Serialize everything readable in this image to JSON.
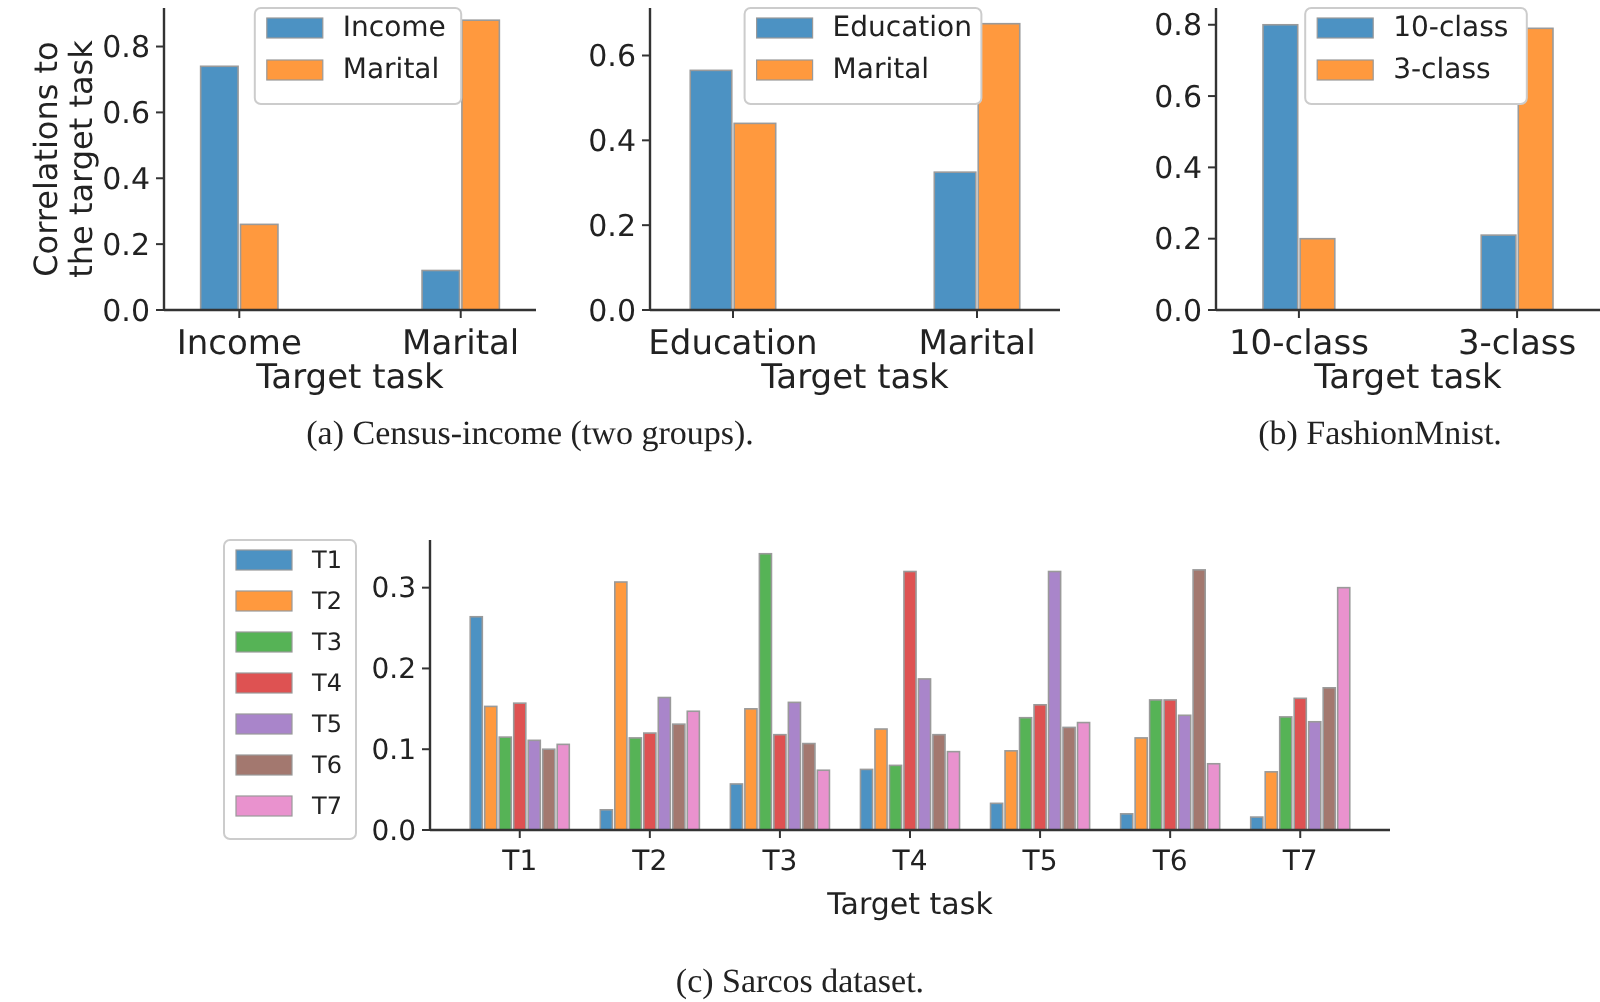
{
  "chart_data": [
    {
      "type": "bar",
      "categories": [
        "Income",
        "Marital"
      ],
      "xlabel": "Target task",
      "ylabel": "Correlations to the target task",
      "ylim": [
        0,
        0.917
      ],
      "yticks": [
        {
          "value": 0,
          "label": "0.0"
        },
        {
          "value": 0.2,
          "label": "0.2"
        },
        {
          "value": 0.4,
          "label": "0.4"
        },
        {
          "value": 0.6,
          "label": "0.6"
        },
        {
          "value": 0.8,
          "label": "0.8"
        }
      ],
      "legend": "top",
      "grid": false,
      "annotations": [
        "(a) Census-income (two groups)."
      ],
      "series": [
        {
          "name": "Income",
          "color": "#4c92c3",
          "values": [
            0.74,
            0.12
          ]
        },
        {
          "name": "Marital",
          "color": "#ff993e",
          "values": [
            0.26,
            0.88
          ]
        }
      ]
    },
    {
      "type": "bar",
      "categories": [
        "Education",
        "Marital"
      ],
      "xlabel": "Target task",
      "ylim": [
        0,
        0.712
      ],
      "yticks": [
        {
          "value": 0,
          "label": "0.0"
        },
        {
          "value": 0.2,
          "label": "0.2"
        },
        {
          "value": 0.4,
          "label": "0.4"
        },
        {
          "value": 0.6,
          "label": "0.6"
        }
      ],
      "legend": "top",
      "grid": false,
      "series": [
        {
          "name": "Education",
          "color": "#4c92c3",
          "values": [
            0.565,
            0.325
          ]
        },
        {
          "name": "Marital",
          "color": "#ff993e",
          "values": [
            0.44,
            0.675
          ]
        }
      ]
    },
    {
      "type": "bar",
      "categories": [
        "10-class",
        "3-class"
      ],
      "xlabel": "Target task",
      "ylim": [
        0,
        0.847
      ],
      "yticks": [
        {
          "value": 0,
          "label": "0.0"
        },
        {
          "value": 0.2,
          "label": "0.2"
        },
        {
          "value": 0.4,
          "label": "0.4"
        },
        {
          "value": 0.6,
          "label": "0.6"
        },
        {
          "value": 0.8,
          "label": "0.8"
        }
      ],
      "legend": "top",
      "grid": false,
      "annotations": [
        "(b) FashionMnist."
      ],
      "series": [
        {
          "name": "10-class",
          "color": "#4c92c3",
          "values": [
            0.8,
            0.21
          ]
        },
        {
          "name": "3-class",
          "color": "#ff993e",
          "values": [
            0.2,
            0.79
          ]
        }
      ]
    },
    {
      "type": "bar",
      "categories": [
        "T1",
        "T2",
        "T3",
        "T4",
        "T5",
        "T6",
        "T7"
      ],
      "xlabel": "Target task",
      "ylim": [
        0,
        0.359
      ],
      "yticks": [
        {
          "value": 0,
          "label": "0.0"
        },
        {
          "value": 0.1,
          "label": "0.1"
        },
        {
          "value": 0.2,
          "label": "0.2"
        },
        {
          "value": 0.3,
          "label": "0.3"
        }
      ],
      "legend": "left",
      "grid": false,
      "annotations": [
        "(c) Sarcos dataset."
      ],
      "series": [
        {
          "name": "T1",
          "color": "#4c92c3",
          "values": [
            0.264,
            0.025,
            0.057,
            0.075,
            0.033,
            0.02,
            0.016
          ]
        },
        {
          "name": "T2",
          "color": "#ff993e",
          "values": [
            0.153,
            0.307,
            0.15,
            0.125,
            0.098,
            0.114,
            0.072
          ]
        },
        {
          "name": "T3",
          "color": "#56b356",
          "values": [
            0.115,
            0.114,
            0.342,
            0.08,
            0.139,
            0.161,
            0.14
          ]
        },
        {
          "name": "T4",
          "color": "#de5252",
          "values": [
            0.157,
            0.12,
            0.118,
            0.32,
            0.155,
            0.161,
            0.163
          ]
        },
        {
          "name": "T5",
          "color": "#a985ca",
          "values": [
            0.111,
            0.164,
            0.158,
            0.187,
            0.32,
            0.142,
            0.134
          ]
        },
        {
          "name": "T6",
          "color": "#a3786f",
          "values": [
            0.1,
            0.131,
            0.107,
            0.118,
            0.127,
            0.322,
            0.176
          ]
        },
        {
          "name": "T7",
          "color": "#e992ce",
          "values": [
            0.106,
            0.147,
            0.074,
            0.097,
            0.133,
            0.082,
            0.3
          ]
        }
      ]
    }
  ]
}
